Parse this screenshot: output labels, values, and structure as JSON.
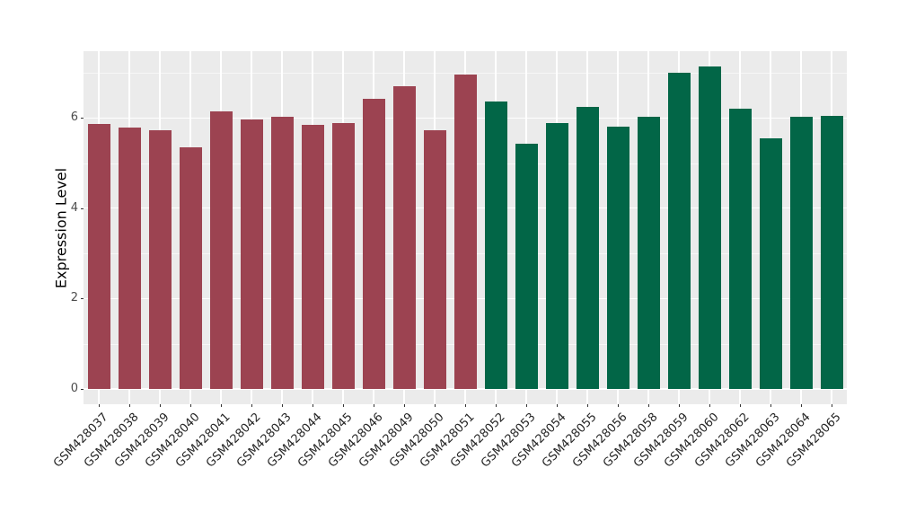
{
  "chart_data": {
    "type": "bar",
    "title": "",
    "xlabel": "",
    "ylabel": "Expression Level",
    "ylim": [
      0,
      7.47
    ],
    "yticks": [
      0,
      2,
      4,
      6
    ],
    "minor_yticks": [
      1,
      3,
      5,
      7
    ],
    "grid": "on",
    "legend": "none",
    "panel_background": "#EBEBEB",
    "grid_color": "#FFFFFF",
    "page_background": "#FFFFFF",
    "axis_text_color": "#4D4D4D",
    "groups": [
      {
        "color": "#9C4351",
        "count": 13
      },
      {
        "color": "#026647",
        "count": 12
      }
    ],
    "categories": [
      "GSM428037",
      "GSM428038",
      "GSM428039",
      "GSM428040",
      "GSM428041",
      "GSM428042",
      "GSM428043",
      "GSM428044",
      "GSM428045",
      "GSM428046",
      "GSM428049",
      "GSM428050",
      "GSM428051",
      "GSM428052",
      "GSM428053",
      "GSM428054",
      "GSM428055",
      "GSM428056",
      "GSM428058",
      "GSM428059",
      "GSM428060",
      "GSM428062",
      "GSM428063",
      "GSM428064",
      "GSM428065"
    ],
    "series": [
      {
        "name": "Expression Level",
        "values": [
          5.85,
          5.77,
          5.71,
          5.33,
          6.14,
          5.96,
          6.01,
          5.83,
          5.87,
          6.41,
          6.69,
          5.71,
          6.95,
          6.36,
          5.41,
          5.87,
          6.24,
          5.8,
          6.01,
          6.98,
          7.12,
          6.19,
          5.54,
          6.02,
          6.04
        ]
      }
    ]
  }
}
